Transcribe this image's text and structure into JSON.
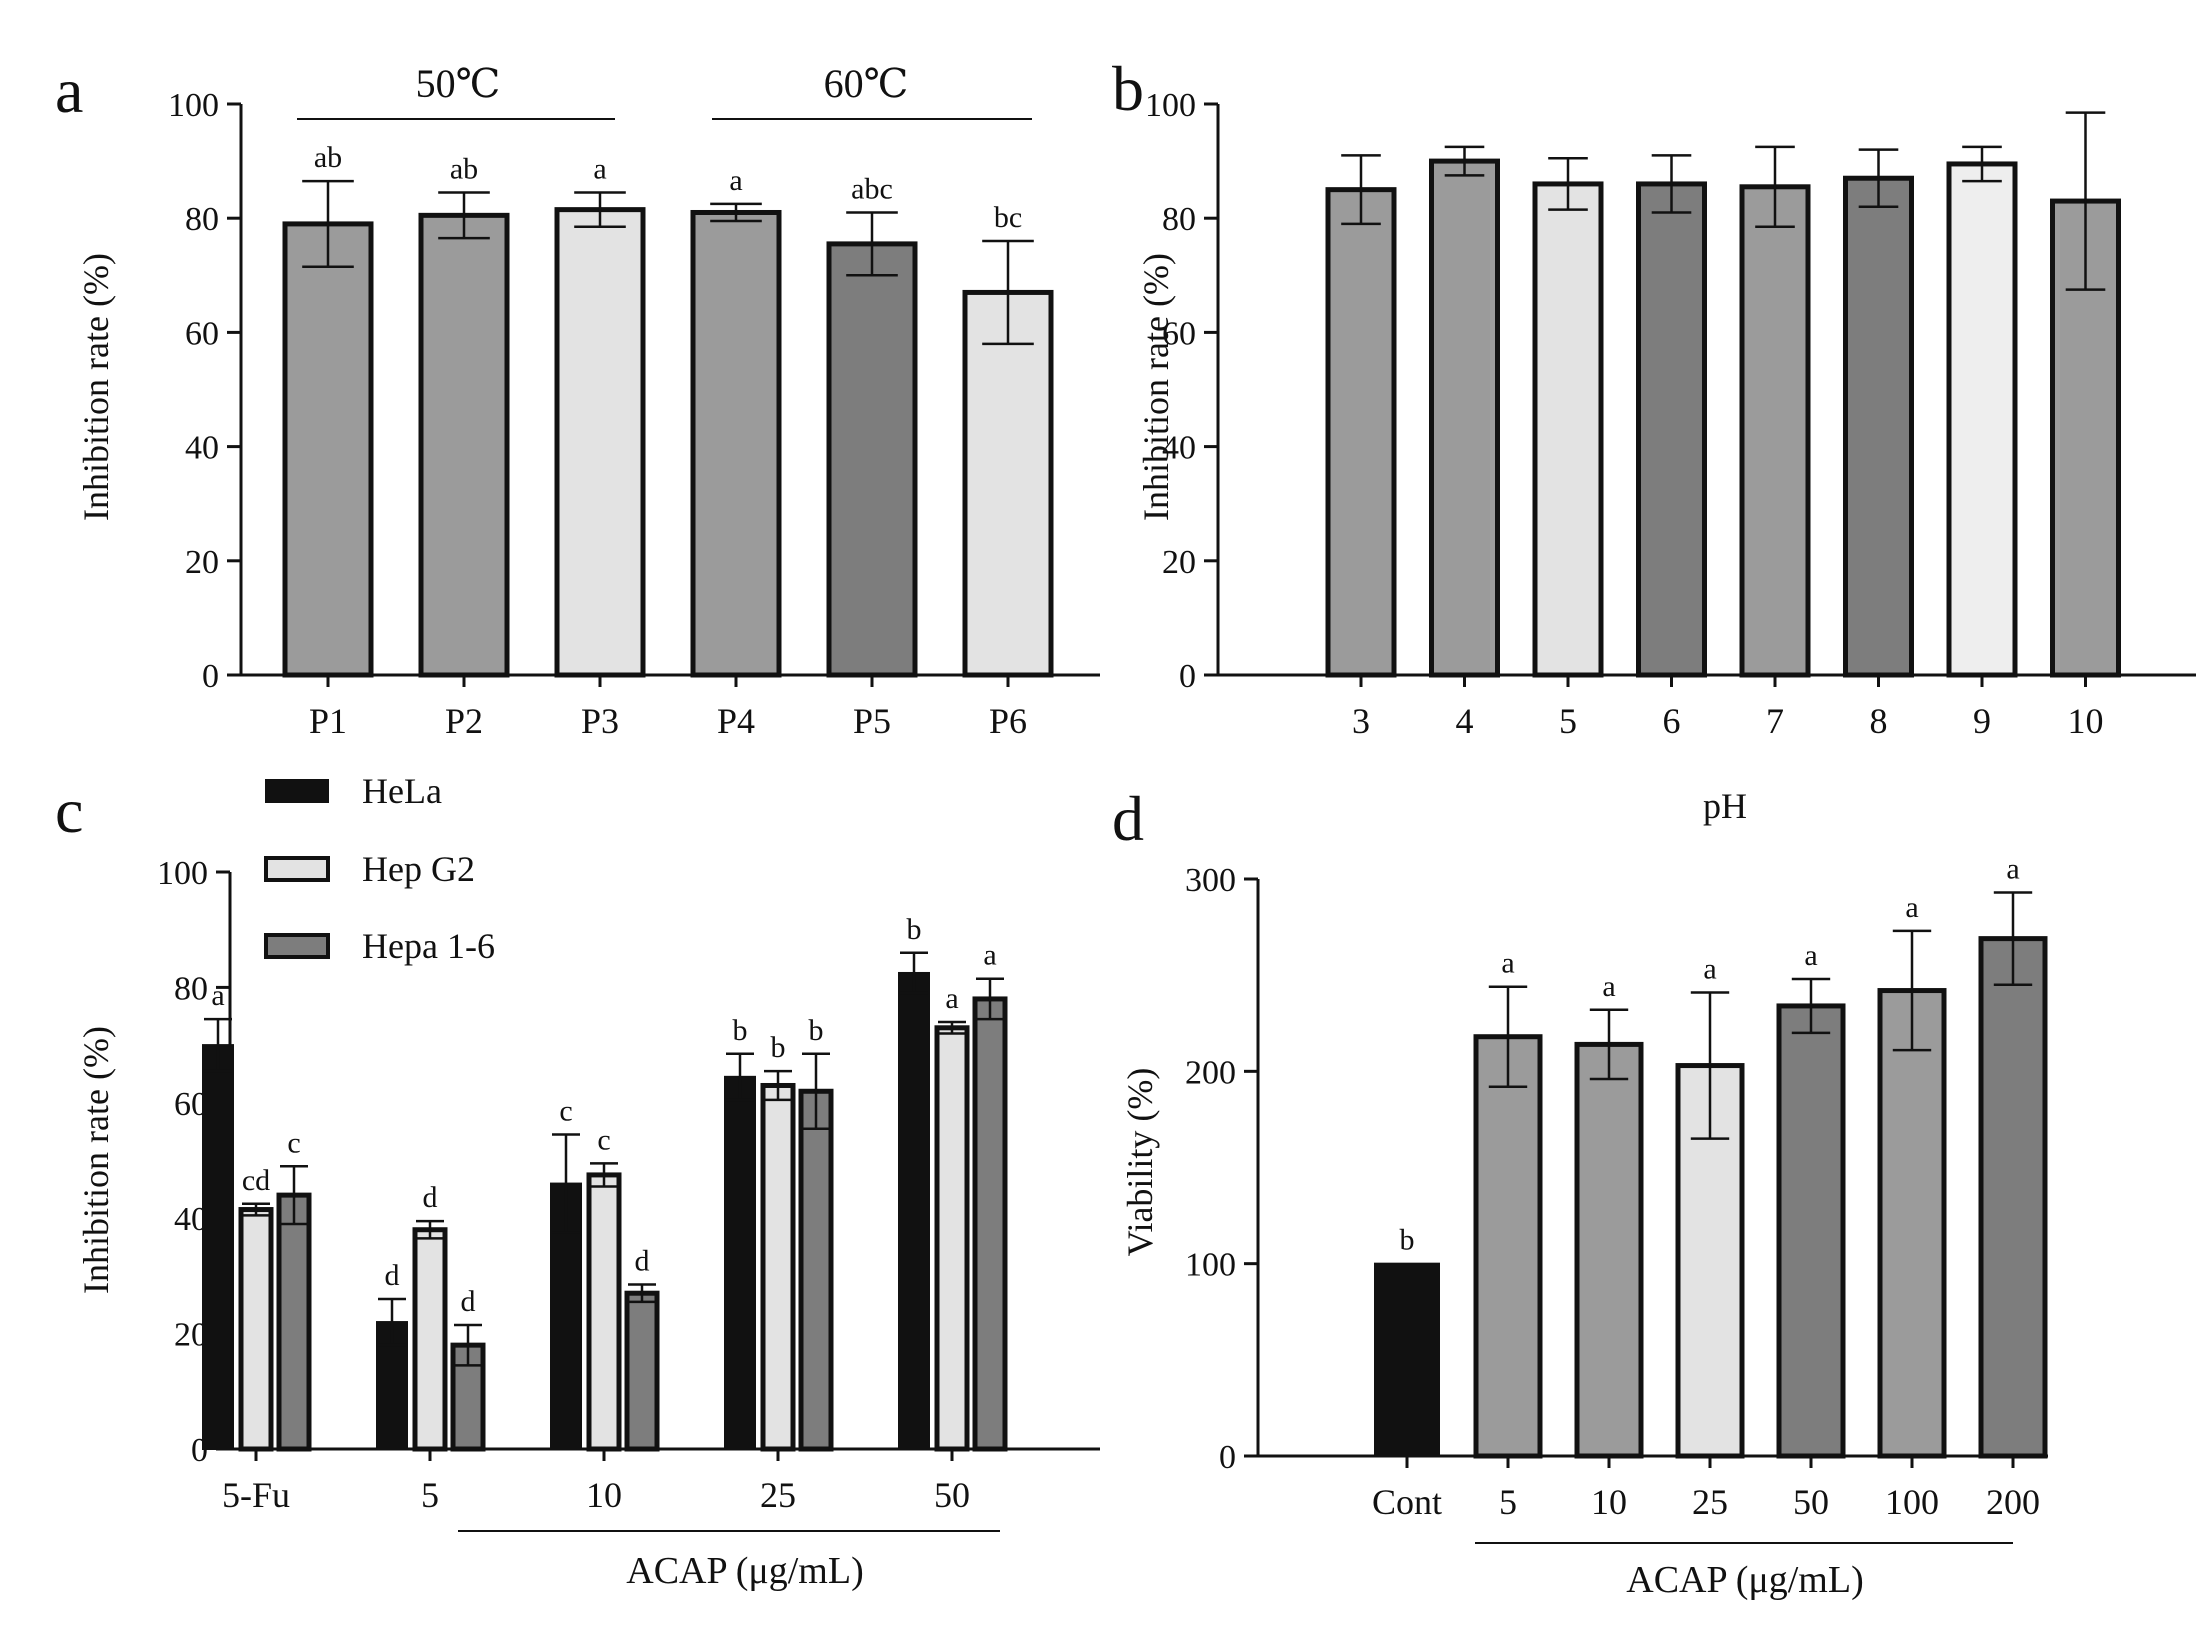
{
  "colors": {
    "black": "#111111",
    "dark": "#7d7d7d",
    "mid": "#9b9b9b",
    "light": "#e3e3e3",
    "lighter": "#eeeeee"
  },
  "chart_data": [
    {
      "id": "a",
      "type": "bar",
      "panel_label": "a",
      "categories": [
        "P1",
        "P2",
        "P3",
        "P4",
        "P5",
        "P6"
      ],
      "values": [
        79,
        80.5,
        81.5,
        81,
        75.5,
        67
      ],
      "errors": [
        7.5,
        4,
        3,
        1.5,
        5.5,
        9
      ],
      "letters": [
        "ab",
        "ab",
        "a",
        "a",
        "abc",
        "bc"
      ],
      "fills": [
        "mid",
        "mid",
        "light",
        "mid",
        "dark",
        "light"
      ],
      "ylabel": "Inhibition rate (%)",
      "xlabel": "",
      "ylim": [
        0,
        100
      ],
      "yticks": [
        0,
        20,
        40,
        60,
        80,
        100
      ],
      "groups": [
        {
          "label": "50℃",
          "from": 0,
          "to": 2
        },
        {
          "label": "60℃",
          "from": 3,
          "to": 5
        }
      ]
    },
    {
      "id": "b",
      "type": "bar",
      "panel_label": "b",
      "categories": [
        "3",
        "4",
        "5",
        "6",
        "7",
        "8",
        "9",
        "10"
      ],
      "values": [
        85,
        90,
        86,
        86,
        85.5,
        87,
        89.5,
        83
      ],
      "errors": [
        6,
        2.5,
        4.5,
        5,
        7,
        5,
        3,
        15.5
      ],
      "fills": [
        "mid",
        "mid",
        "light",
        "dark",
        "mid",
        "dark",
        "lighter",
        "mid"
      ],
      "ylabel": "Inhibition rate (%)",
      "xlabel": "pH",
      "ylim": [
        0,
        100
      ],
      "yticks": [
        0,
        20,
        40,
        60,
        80,
        100
      ]
    },
    {
      "id": "c",
      "type": "bar",
      "panel_label": "c",
      "categories": [
        "5-Fu",
        "5",
        "10",
        "25",
        "50"
      ],
      "series": [
        {
          "name": "HeLa",
          "fill": "black",
          "values": [
            70,
            22,
            46,
            64.5,
            82.5
          ],
          "errors": [
            4.5,
            4,
            8.5,
            4,
            3.5
          ],
          "letters": [
            "a",
            "d",
            "c",
            "b",
            "b"
          ]
        },
        {
          "name": "Hep G2",
          "fill": "light",
          "values": [
            41.5,
            38,
            47.5,
            63,
            73
          ],
          "errors": [
            1,
            1.5,
            2,
            2.5,
            1
          ],
          "letters": [
            "cd",
            "d",
            "c",
            "b",
            "a"
          ]
        },
        {
          "name": "Hepa 1-6",
          "fill": "dark",
          "values": [
            44,
            18,
            27,
            62,
            78
          ],
          "errors": [
            5,
            3.5,
            1.5,
            6.5,
            3.5
          ],
          "letters": [
            "c",
            "d",
            "d",
            "b",
            "a"
          ]
        }
      ],
      "ylabel": "Inhibition rate (%)",
      "xlabel": "ACAP (μg/mL)",
      "ylim": [
        0,
        100
      ],
      "yticks": [
        0,
        20,
        40,
        60,
        80,
        100
      ],
      "legend_position": "top-left",
      "bracket": {
        "from": 1,
        "to": 4
      }
    },
    {
      "id": "d",
      "type": "bar",
      "panel_label": "d",
      "categories": [
        "Cont",
        "5",
        "10",
        "25",
        "50",
        "100",
        "200"
      ],
      "values": [
        100,
        218,
        214,
        203,
        234,
        242,
        269
      ],
      "errors": [
        0,
        26,
        18,
        38,
        14,
        31,
        24
      ],
      "letters": [
        "b",
        "a",
        "a",
        "a",
        "a",
        "a",
        "a"
      ],
      "fills": [
        "black",
        "mid",
        "mid",
        "light",
        "dark",
        "mid",
        "dark"
      ],
      "ylabel": "Viability (%)",
      "xlabel": "ACAP (μg/mL)",
      "ylim": [
        0,
        300
      ],
      "yticks": [
        0,
        100,
        200,
        300
      ],
      "bracket": {
        "from": 1,
        "to": 6
      }
    }
  ]
}
